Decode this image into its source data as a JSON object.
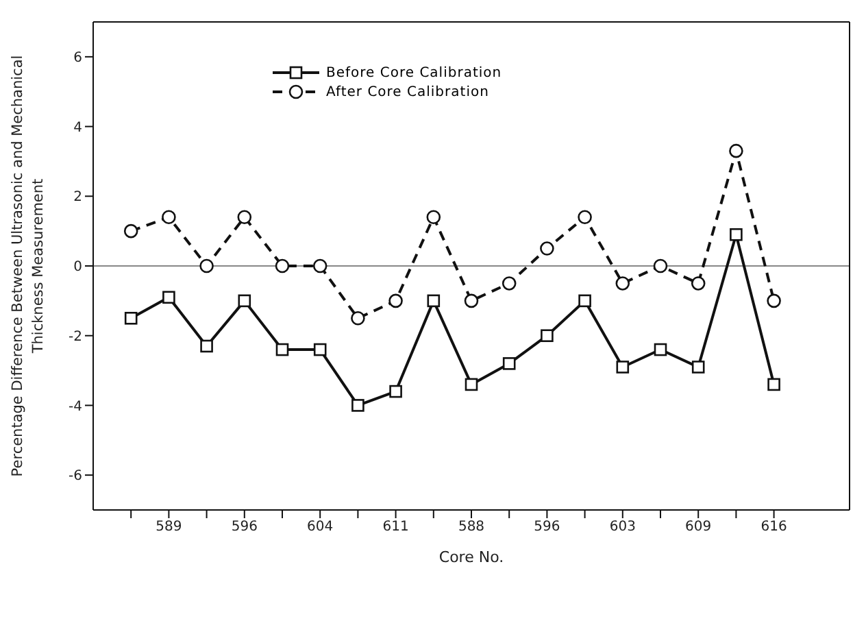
{
  "chart_data": {
    "type": "line",
    "xlabel": "Core No.",
    "ylabel": "Percentage Difference Between Ultrasonic and Mechanical\nThickness Measurement",
    "categories": [
      null,
      "589",
      null,
      "596",
      null,
      "604",
      null,
      "611",
      null,
      "588",
      null,
      "596",
      null,
      "603",
      null,
      "609",
      null,
      "616"
    ],
    "series": [
      {
        "name": "Before Core Calibration",
        "color": "#111111",
        "marker": "square",
        "line_style": "solid",
        "values": [
          -1.5,
          -0.9,
          -2.3,
          -1.0,
          -2.4,
          -2.4,
          -4.0,
          -3.6,
          -1.0,
          -3.4,
          -2.8,
          -2.0,
          -1.0,
          -2.9,
          -2.4,
          -2.9,
          0.9,
          -3.4
        ]
      },
      {
        "name": "After Core Calibration",
        "color": "#111111",
        "marker": "circle",
        "line_style": "dashed",
        "values": [
          1.0,
          1.4,
          0.0,
          1.4,
          0.0,
          0.0,
          -1.5,
          -1.0,
          1.4,
          -1.0,
          -0.5,
          0.5,
          1.4,
          -0.5,
          0.0,
          -0.5,
          3.3,
          -1.0
        ]
      }
    ],
    "ylim": [
      -7,
      7
    ],
    "yticks": [
      -6,
      -4,
      -2,
      0,
      2,
      4,
      6
    ],
    "grid": false,
    "legend": "top left",
    "ref_lines": [
      {
        "axis": "y",
        "value": 0,
        "color": "#888888"
      }
    ]
  }
}
